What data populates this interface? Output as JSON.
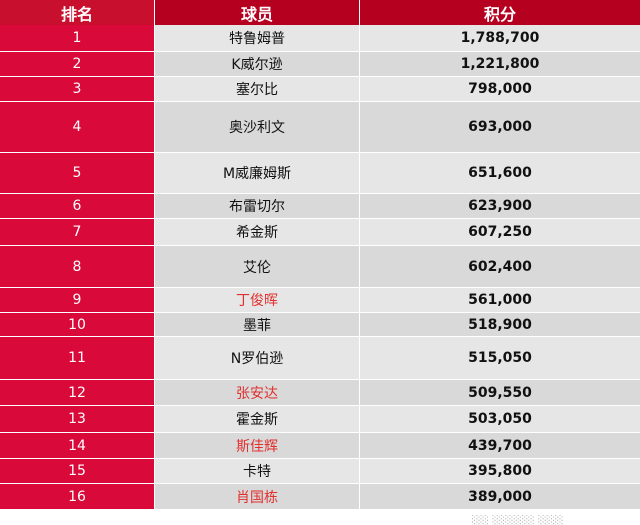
{
  "header": {
    "rank": "排名",
    "player": "球员",
    "points": "积分"
  },
  "rows": [
    {
      "rank": "1",
      "player": "特鲁姆普",
      "points": "1,788,700",
      "highlight": false
    },
    {
      "rank": "2",
      "player": "K威尔逊",
      "points": "1,221,800",
      "highlight": false
    },
    {
      "rank": "3",
      "player": "塞尔比",
      "points": "798,000",
      "highlight": false
    },
    {
      "rank": "4",
      "player": "奥沙利文",
      "points": "693,000",
      "highlight": false
    },
    {
      "rank": "5",
      "player": "M威廉姆斯",
      "points": "651,600",
      "highlight": false
    },
    {
      "rank": "6",
      "player": "布雷切尔",
      "points": "623,900",
      "highlight": false
    },
    {
      "rank": "7",
      "player": "希金斯",
      "points": "607,250",
      "highlight": false
    },
    {
      "rank": "8",
      "player": "艾伦",
      "points": "602,400",
      "highlight": false
    },
    {
      "rank": "9",
      "player": "丁俊晖",
      "points": "561,000",
      "highlight": true
    },
    {
      "rank": "10",
      "player": "墨菲",
      "points": "518,900",
      "highlight": false
    },
    {
      "rank": "11",
      "player": "N罗伯逊",
      "points": "515,050",
      "highlight": false
    },
    {
      "rank": "12",
      "player": "张安达",
      "points": "509,550",
      "highlight": true
    },
    {
      "rank": "13",
      "player": "霍金斯",
      "points": "503,050",
      "highlight": false
    },
    {
      "rank": "14",
      "player": "斯佳辉",
      "points": "439,700",
      "highlight": true
    },
    {
      "rank": "15",
      "player": "卡特",
      "points": "395,800",
      "highlight": false
    },
    {
      "rank": "16",
      "player": "肖国栋",
      "points": "389,000",
      "highlight": true
    }
  ],
  "colors": {
    "rank_bg": "#d90a3a",
    "header_bg": "#b5001f",
    "highlight_text": "#e0302e"
  }
}
